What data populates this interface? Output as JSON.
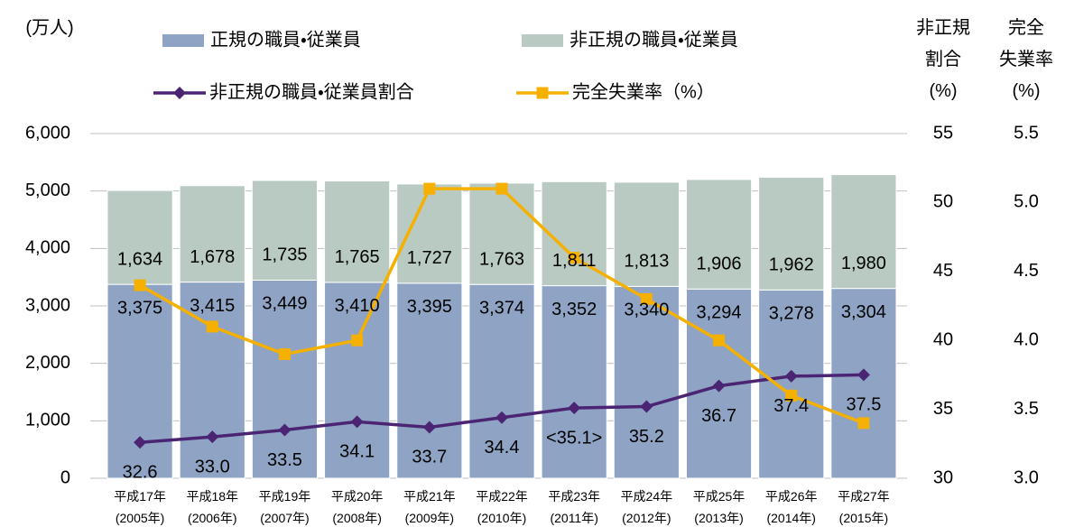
{
  "chart_data": {
    "type": "bar",
    "stacked": true,
    "y_axis_title": "(万人)",
    "y2_axis_title": "非正規\n割合\n(%)",
    "y3_axis_title": "完全\n失業率\n(%)",
    "categories": [
      "平成17年\n(2005年)",
      "平成18年\n(2006年)",
      "平成19年\n(2007年)",
      "平成20年\n(2008年)",
      "平成21年\n(2009年)",
      "平成22年\n(2010年)",
      "平成23年\n(2011年)",
      "平成24年\n(2012年)",
      "平成25年\n(2013年)",
      "平成26年\n(2014年)",
      "平成27年\n(2015年)"
    ],
    "series": [
      {
        "name": "正規の職員・従業員",
        "type": "bar",
        "color": "#8fa4c4",
        "values": [
          3375,
          3415,
          3449,
          3410,
          3395,
          3374,
          3352,
          3340,
          3294,
          3278,
          3304
        ],
        "value_labels": [
          "3,375",
          "3,415",
          "3,449",
          "3,410",
          "3,395",
          "3,374",
          "3,352",
          "3,340",
          "3,294",
          "3,278",
          "3,304"
        ]
      },
      {
        "name": "非正規の職員・従業員",
        "type": "bar",
        "color": "#b8cac2",
        "values": [
          1634,
          1678,
          1735,
          1765,
          1727,
          1763,
          1811,
          1813,
          1906,
          1962,
          1980
        ],
        "value_labels": [
          "1,634",
          "1,678",
          "1,735",
          "1,765",
          "1,727",
          "1,763",
          "1,811",
          "1,813",
          "1,906",
          "1,962",
          "1,980"
        ]
      },
      {
        "name": "非正規の職員・従業員割合",
        "type": "line",
        "axis": "y2",
        "color": "#4b2473",
        "marker": "diamond",
        "values": [
          32.6,
          33.0,
          33.5,
          34.1,
          33.7,
          34.4,
          35.1,
          35.2,
          36.7,
          37.4,
          37.5
        ],
        "value_labels": [
          "32.6",
          "33.0",
          "33.5",
          "34.1",
          "33.7",
          "34.4",
          "<35.1>",
          "35.2",
          "36.7",
          "37.4",
          "37.5"
        ]
      },
      {
        "name": "完全失業率（%）",
        "type": "line",
        "axis": "y3",
        "color": "#f5b000",
        "marker": "square",
        "values": [
          4.4,
          4.1,
          3.9,
          4.0,
          5.1,
          5.1,
          4.6,
          4.3,
          4.0,
          3.6,
          3.4
        ]
      }
    ],
    "ylim": [
      0,
      6000
    ],
    "yticks": [
      0,
      {
        "value": 1000,
        "label": "1,000"
      },
      {
        "value": 2000,
        "label": "2,000"
      },
      {
        "value": 3000,
        "label": "3,000"
      },
      {
        "value": 4000,
        "label": "4,000"
      },
      {
        "value": 5000,
        "label": "5,000"
      },
      {
        "value": 6000,
        "label": "6,000"
      }
    ],
    "y2lim": [
      30,
      55
    ],
    "y2ticks": [
      30,
      35,
      40,
      45,
      50,
      55
    ],
    "y3lim": [
      3.0,
      5.5
    ],
    "y3ticks": [
      {
        "value": 3.0,
        "label": "3.0"
      },
      3.5,
      {
        "value": 4.0,
        "label": "4.0"
      },
      4.5,
      {
        "value": 5.0,
        "label": "5.0"
      },
      5.5
    ],
    "grid": true
  }
}
